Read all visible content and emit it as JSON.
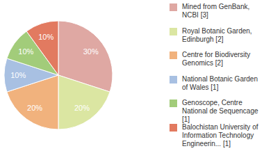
{
  "chart_data": {
    "type": "pie",
    "categories": [
      "Mined from GenBank, NCBI [3]",
      "Royal Botanic Garden, Edinburgh [2]",
      "Centre for Biodiversity Genomics [2]",
      "National Botanic Garden of Wales [1]",
      "Genoscope, Centre National de Sequencage [1]",
      "Balochistan University of Information Technology Engineerin... [1]"
    ],
    "values": [
      30,
      20,
      20,
      10,
      10,
      10
    ],
    "value_labels": [
      "30%",
      "20%",
      "20%",
      "10%",
      "10%",
      "10%"
    ],
    "colors": [
      "#dfa8a3",
      "#dbe6a2",
      "#f1b27d",
      "#a8c0e2",
      "#a2cc7a",
      "#e27a60"
    ],
    "data_labels": true,
    "legend": "right"
  }
}
